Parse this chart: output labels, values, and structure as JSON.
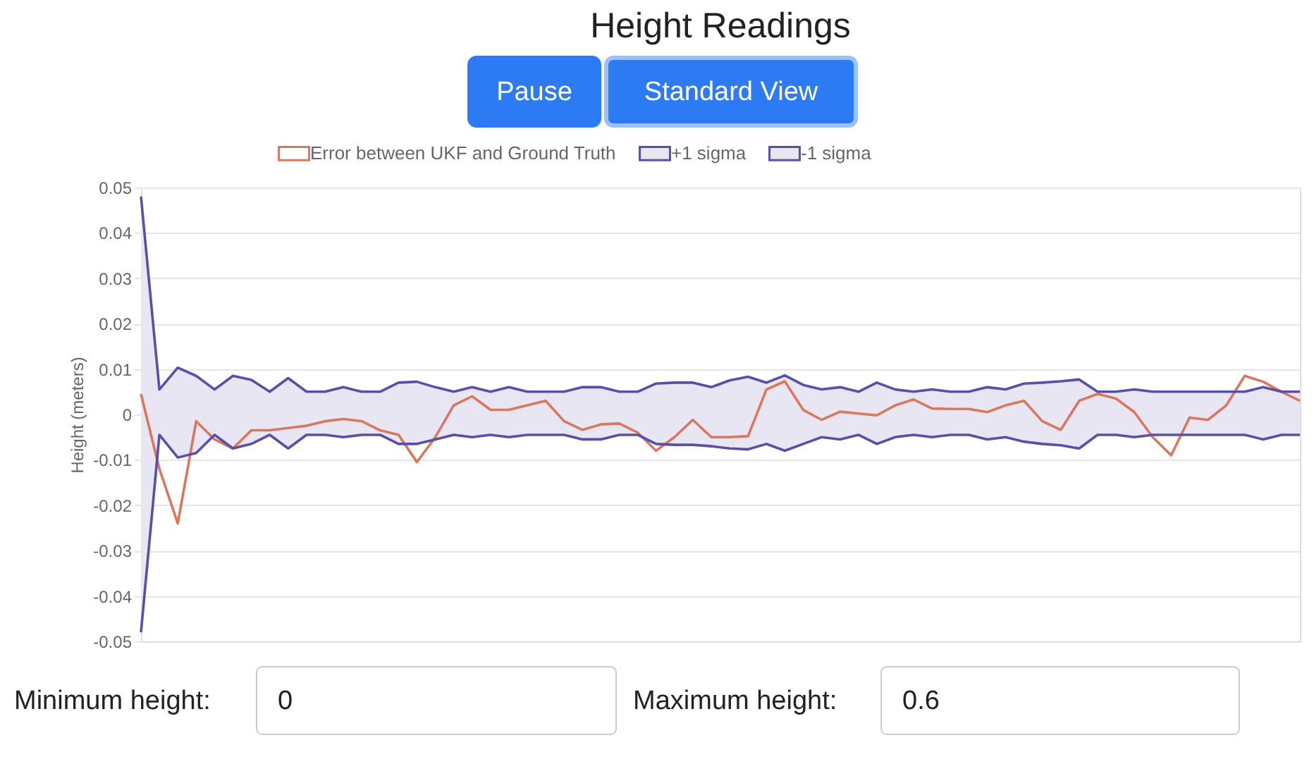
{
  "chart_data": {
    "type": "line",
    "title": "Height Readings",
    "ylabel": "Height (meters)",
    "categories": [
      null,
      null,
      null,
      null,
      null,
      null,
      null,
      null,
      null,
      null,
      null,
      null,
      null,
      null,
      null,
      null,
      null,
      null,
      null,
      null,
      null,
      null,
      null,
      null,
      null,
      null,
      null,
      null,
      null,
      null,
      null,
      null,
      null,
      null,
      null,
      null,
      null,
      null,
      null,
      null,
      null,
      null,
      null,
      null,
      null,
      null,
      null,
      null,
      null,
      null,
      null,
      null,
      null,
      null,
      null,
      null,
      null,
      null,
      null,
      null,
      null,
      null,
      null,
      null
    ],
    "series": [
      {
        "name": "Error between UKF and Ground Truth",
        "type": "line",
        "color": "#d9775f",
        "values": [
          0.0045,
          -0.012,
          -0.024,
          -0.0015,
          -0.0055,
          -0.0075,
          -0.0035,
          -0.0035,
          -0.003,
          -0.0025,
          -0.0015,
          -0.001,
          -0.0015,
          -0.0035,
          -0.0045,
          -0.0105,
          -0.005,
          0.002,
          0.004,
          0.001,
          0.001,
          0.002,
          0.003,
          -0.0015,
          -0.0034,
          -0.0022,
          -0.002,
          -0.004,
          -0.008,
          -0.005,
          -0.0012,
          -0.005,
          -0.005,
          -0.0048,
          0.0055,
          0.0073,
          0.001,
          -0.0012,
          0.0006,
          0.0002,
          -0.0002,
          0.002,
          0.0033,
          0.0013,
          0.0012,
          0.0012,
          0.0005,
          0.002,
          0.003,
          -0.0015,
          -0.0034,
          0.003,
          0.0045,
          0.0035,
          0.0005,
          -0.005,
          -0.009,
          -0.0007,
          -0.0012,
          0.002,
          0.0085,
          0.0072,
          0.005,
          0.003
        ]
      },
      {
        "name": "+1 sigma",
        "type": "area",
        "color": "#5a4fa8",
        "values": [
          0.048,
          0.0055,
          0.0103,
          0.0085,
          0.0055,
          0.0085,
          0.0076,
          0.005,
          0.008,
          0.005,
          0.005,
          0.006,
          0.005,
          0.005,
          0.007,
          0.0072,
          0.006,
          0.005,
          0.006,
          0.005,
          0.006,
          0.005,
          0.005,
          0.005,
          0.006,
          0.006,
          0.005,
          0.005,
          0.0068,
          0.007,
          0.007,
          0.006,
          0.0075,
          0.0083,
          0.007,
          0.0086,
          0.0065,
          0.0055,
          0.006,
          0.005,
          0.007,
          0.0055,
          0.005,
          0.0055,
          0.005,
          0.005,
          0.006,
          0.0055,
          0.0068,
          0.007,
          0.0073,
          0.0077,
          0.005,
          0.005,
          0.0055,
          0.005,
          0.005,
          0.005,
          0.005,
          0.005,
          0.005,
          0.006,
          0.005,
          0.005
        ]
      },
      {
        "name": "-1 sigma",
        "type": "area",
        "color": "#5a4fa8",
        "values": [
          -0.048,
          -0.0045,
          -0.0095,
          -0.0085,
          -0.0045,
          -0.0075,
          -0.0065,
          -0.0045,
          -0.0075,
          -0.0045,
          -0.0045,
          -0.005,
          -0.0045,
          -0.0045,
          -0.0065,
          -0.0065,
          -0.0055,
          -0.0045,
          -0.005,
          -0.0045,
          -0.005,
          -0.0045,
          -0.0045,
          -0.0045,
          -0.0055,
          -0.0055,
          -0.0045,
          -0.0045,
          -0.0065,
          -0.0067,
          -0.0067,
          -0.007,
          -0.0075,
          -0.0077,
          -0.0065,
          -0.008,
          -0.0065,
          -0.005,
          -0.0055,
          -0.0045,
          -0.0065,
          -0.005,
          -0.0045,
          -0.005,
          -0.0045,
          -0.0045,
          -0.0055,
          -0.005,
          -0.006,
          -0.0065,
          -0.0068,
          -0.0075,
          -0.0045,
          -0.0045,
          -0.005,
          -0.0045,
          -0.0045,
          -0.0045,
          -0.0045,
          -0.0045,
          -0.0045,
          -0.0055,
          -0.0045,
          -0.0045
        ]
      }
    ],
    "ylim": [
      -0.05,
      0.05
    ],
    "yticks": [
      -0.05,
      -0.04,
      -0.03,
      -0.02,
      -0.01,
      0,
      0.01,
      0.02,
      0.03,
      0.04,
      0.05
    ],
    "grid": "y",
    "legend": "top",
    "tick_labels": "y",
    "marker": "none",
    "line_style": "solid",
    "annotations": [
      "Pause",
      "Standard View",
      "Minimum height:",
      "0",
      "Maximum height:",
      "0.6"
    ]
  }
}
